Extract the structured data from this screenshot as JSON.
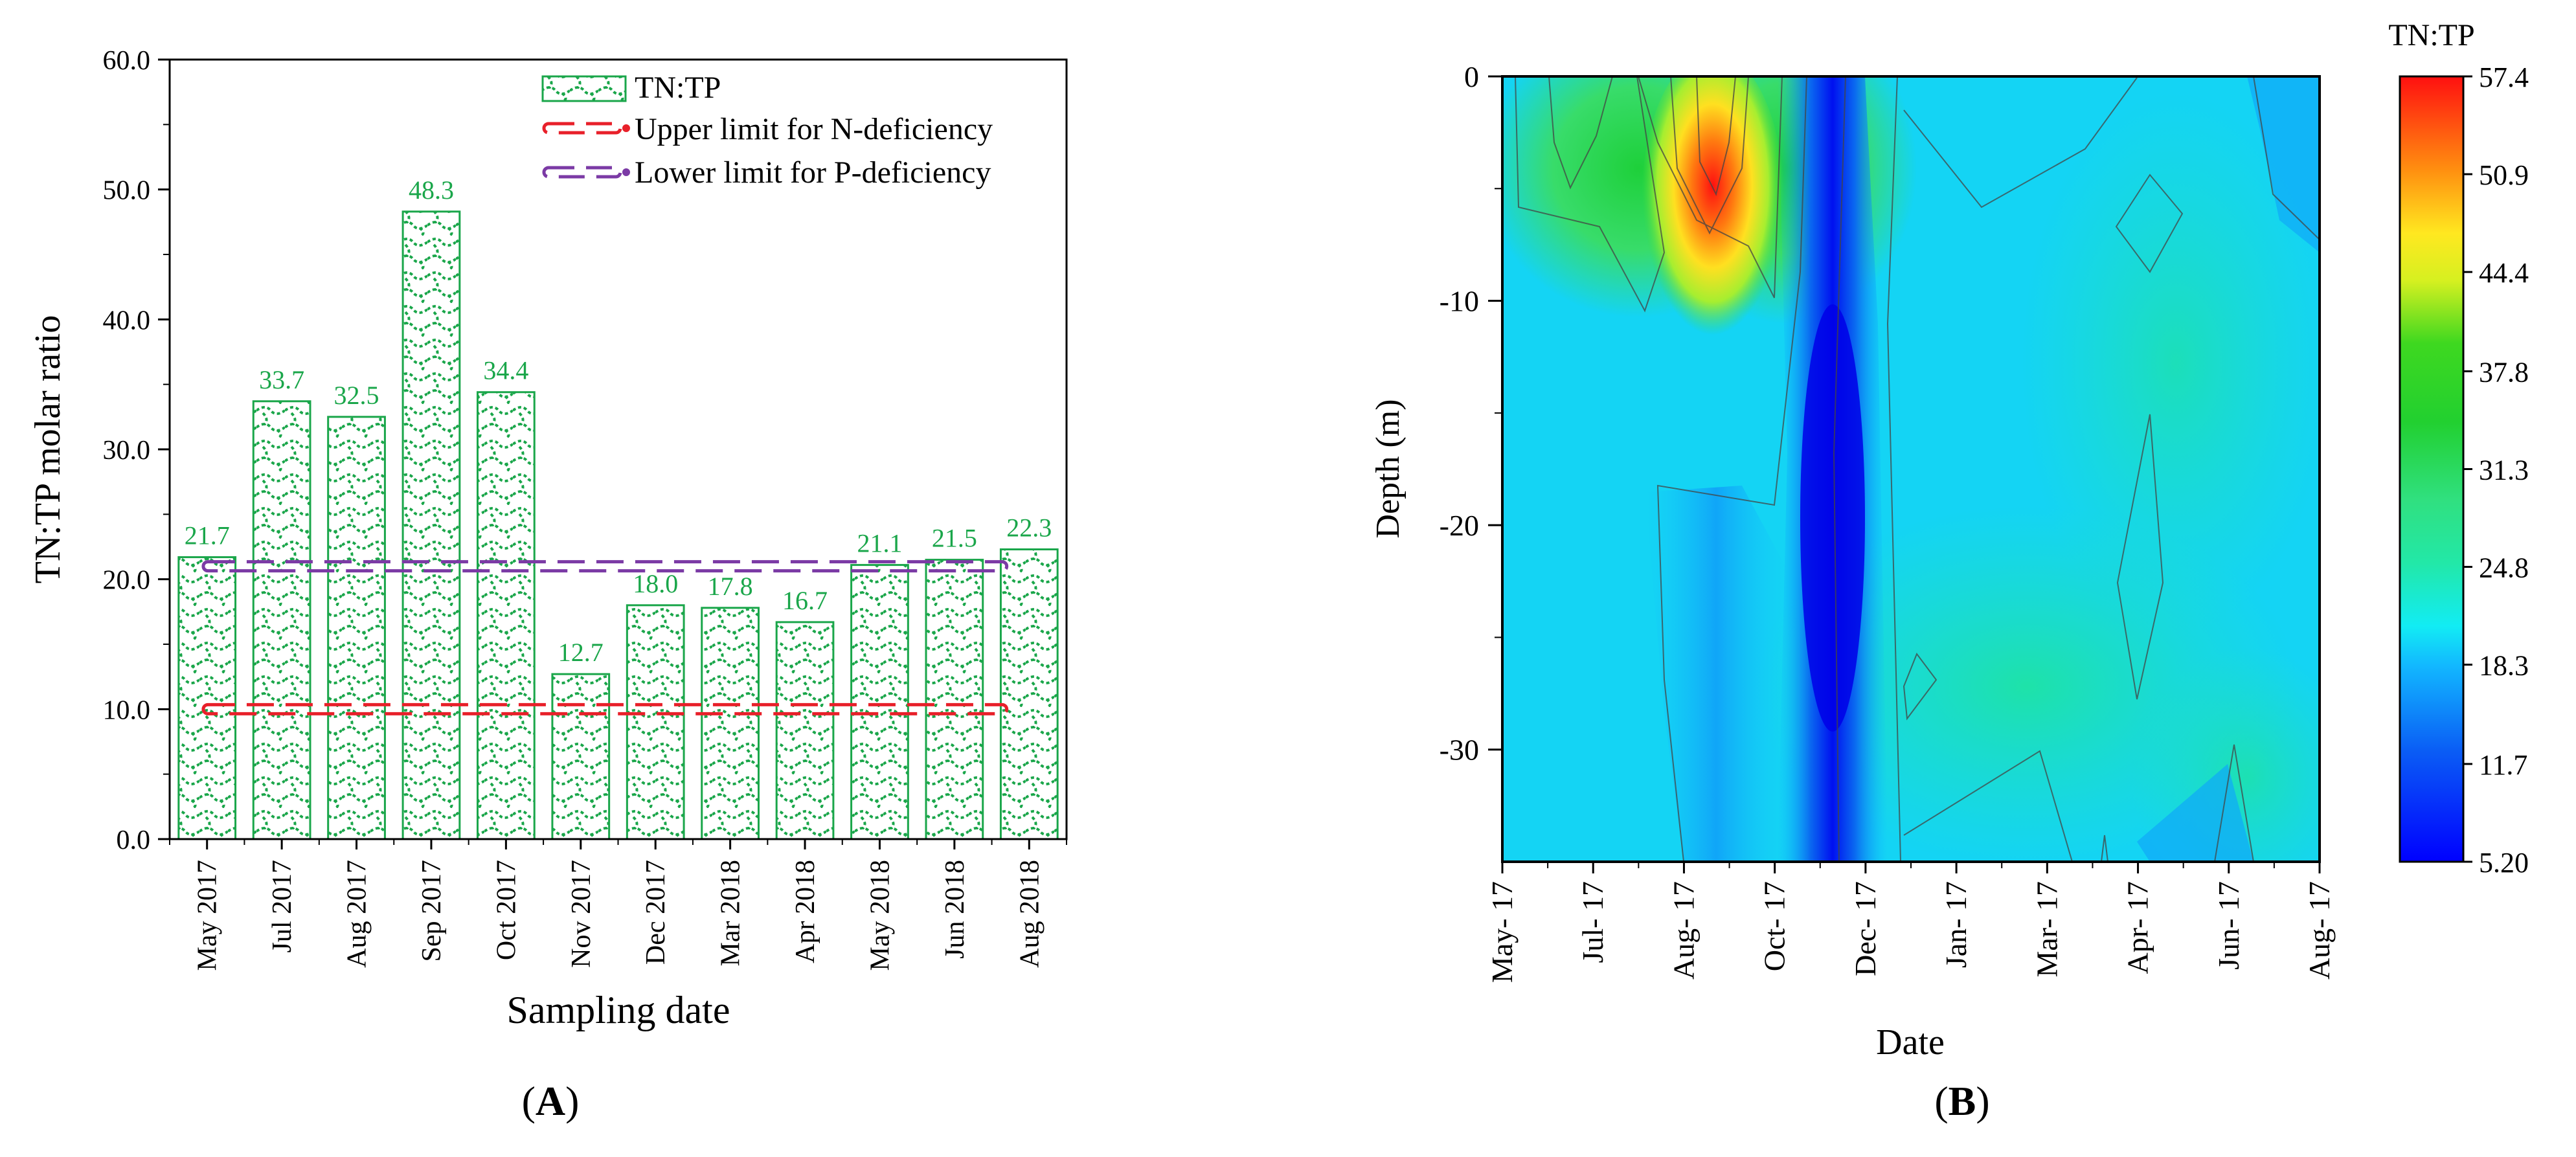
{
  "panels": {
    "a_label": "(A)",
    "a_letter": "A",
    "b_label": "(B)",
    "b_letter": "B"
  },
  "chart_data": [
    {
      "type": "bar",
      "panel": "A",
      "title": "",
      "xlabel": "Sampling date",
      "ylabel": "TN:TP molar ratio",
      "ylim": [
        0,
        60
      ],
      "yticks": [
        "0.0",
        "10.0",
        "20.0",
        "30.0",
        "40.0",
        "50.0",
        "60.0"
      ],
      "categories": [
        "May 2017",
        "Jul 2017",
        "Aug 2017",
        "Sep 2017",
        "Oct 2017",
        "Nov 2017",
        "Dec 2017",
        "Mar 2018",
        "Apr 2018",
        "May 2018",
        "Jun 2018",
        "Aug 2018"
      ],
      "series": [
        {
          "name": "TN:TP",
          "values": [
            21.7,
            33.7,
            32.5,
            48.3,
            34.4,
            12.7,
            18.0,
            17.8,
            16.7,
            21.1,
            21.5,
            22.3
          ],
          "labels": [
            "21.7",
            "33.7",
            "32.5",
            "48.3",
            "34.4",
            "12.7",
            "18.0",
            "17.8",
            "16.7",
            "21.1",
            "21.5",
            "22.3"
          ],
          "color": "#1aa64a",
          "pattern": "hatched"
        }
      ],
      "reference_lines": [
        {
          "name": "Upper limit for N-deficiency",
          "value": 10,
          "color": "#e8202a"
        },
        {
          "name": "Lower limit for P-deficiency",
          "value": 21,
          "color": "#7b3aa5"
        }
      ],
      "legend": "top-right",
      "grid": false
    },
    {
      "type": "heatmap",
      "panel": "B",
      "title": "",
      "xlabel": "Date",
      "ylabel": "Depth (m)",
      "xticks": [
        "May- 17",
        "Jul- 17",
        "Aug- 17",
        "Oct- 17",
        "Dec- 17",
        "Jan- 17",
        "Mar- 17",
        "Apr- 17",
        "Jun- 17",
        "Aug- 17"
      ],
      "yticks": [
        "0",
        "-10",
        "-20",
        "-30"
      ],
      "ylim": [
        -35,
        0
      ],
      "colorbar": {
        "title": "TN:TP",
        "min": 5.2,
        "max": 57.4,
        "ticks": [
          "57.4",
          "50.9",
          "44.4",
          "37.8",
          "31.3",
          "24.8",
          "18.3",
          "11.7",
          "5.20"
        ]
      },
      "grid": false
    }
  ]
}
